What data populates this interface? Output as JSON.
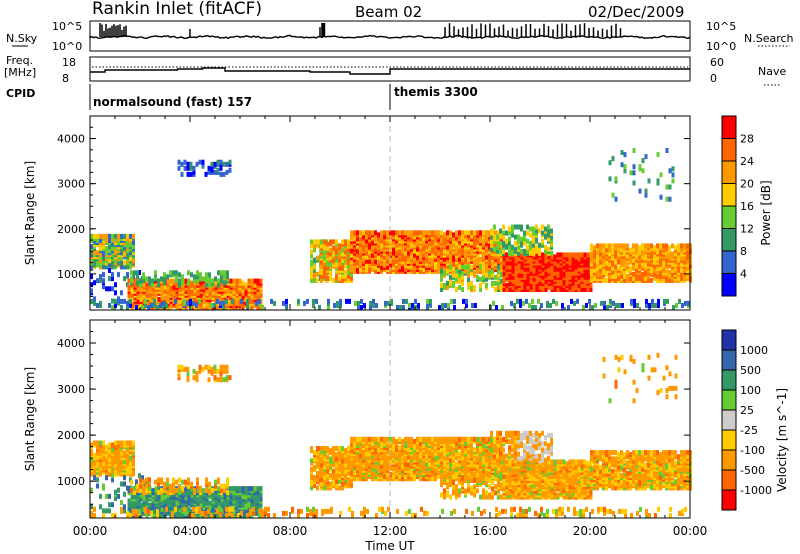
{
  "header": {
    "station": "Rankin Inlet (fitACF)",
    "beam": "Beam 02",
    "date": "02/Dec/2009"
  },
  "summary_panels": {
    "nsky_label": "N.Sky",
    "nsky_ticks": [
      "10^5",
      "10^0"
    ],
    "nsearch_label": "N.Search",
    "nsearch_ticks": [
      "10^5",
      "10^0"
    ],
    "freq_label_1": "Freq.",
    "freq_label_2": "[MHz]",
    "freq_ticks": [
      "18",
      "8"
    ],
    "nave_label": "Nave",
    "nave_ticks": [
      "60",
      "0"
    ],
    "cpid_label": "CPID",
    "cpid_modes": [
      {
        "name": "normalsound (fast) 157",
        "start": "00:00",
        "end": "12:00"
      },
      {
        "name": "themis 3300",
        "start": "12:00",
        "end": "24:00"
      }
    ]
  },
  "colors": {
    "power_scale": [
      "#0000ff",
      "#3366cc",
      "#339966",
      "#66cc33",
      "#ffcc00",
      "#ff9900",
      "#ff6600",
      "#ff0000"
    ],
    "velocity_scale": [
      "#ff0000",
      "#ff6600",
      "#ff9900",
      "#ffcc00",
      "#cccccc",
      "#66cc33",
      "#339966",
      "#3366aa",
      "#2233aa"
    ]
  },
  "chart_data": [
    {
      "type": "heatmap",
      "name": "power",
      "ylabel": "Slant Range [km]",
      "yticks": [
        "1000",
        "2000",
        "3000",
        "4000"
      ],
      "ylim": [
        200,
        4500
      ],
      "xlim": [
        "00:00",
        "24:00"
      ],
      "colorbar_label": "Power [dB]",
      "colorbar_ticks": [
        "4",
        "8",
        "12",
        "16",
        "20",
        "24",
        "28"
      ],
      "colorbar_range": [
        0,
        32
      ]
    },
    {
      "type": "heatmap",
      "name": "velocity",
      "ylabel": "Slant Range [km]",
      "yticks": [
        "1000",
        "2000",
        "3000",
        "4000"
      ],
      "ylim": [
        200,
        4500
      ],
      "xlabel": "Time UT",
      "xticks": [
        "00:00",
        "04:00",
        "08:00",
        "12:00",
        "16:00",
        "20:00",
        "00:00"
      ],
      "xlim": [
        "00:00",
        "24:00"
      ],
      "colorbar_label": "Velocity [m s^-1]",
      "colorbar_ticks": [
        "1000",
        "500",
        "100",
        "25",
        "-25",
        "-100",
        "-500",
        "-1000"
      ]
    }
  ],
  "scatter_regions": [
    {
      "t0": 0.0,
      "t1": 1.7,
      "r0": 1100,
      "r1": 1800,
      "p": 0.85,
      "pw": [
        6,
        24
      ]
    },
    {
      "t0": 0.0,
      "t1": 2.3,
      "r0": 300,
      "r1": 1100,
      "p": 0.12,
      "pw": [
        2,
        10
      ]
    },
    {
      "t0": 1.5,
      "t1": 6.8,
      "r0": 200,
      "r1": 800,
      "p": 0.9,
      "pw": [
        18,
        30
      ]
    },
    {
      "t0": 1.6,
      "t1": 5.5,
      "r0": 700,
      "r1": 1000,
      "p": 0.4,
      "pw": [
        8,
        16
      ]
    },
    {
      "t0": 3.5,
      "t1": 5.6,
      "r0": 3150,
      "r1": 3450,
      "p": 0.35,
      "pw": [
        2,
        10
      ]
    },
    {
      "t0": 8.8,
      "t1": 9.4,
      "r0": 800,
      "r1": 1700,
      "p": 0.6,
      "pw": [
        10,
        22
      ]
    },
    {
      "t0": 9.2,
      "t1": 10.5,
      "r0": 800,
      "r1": 1700,
      "p": 0.75,
      "pw": [
        14,
        28
      ]
    },
    {
      "t0": 10.4,
      "t1": 16.5,
      "r0": 1000,
      "r1": 1900,
      "p": 0.92,
      "pw": [
        18,
        30
      ]
    },
    {
      "t0": 14.0,
      "t1": 16.5,
      "r0": 600,
      "r1": 1100,
      "p": 0.45,
      "pw": [
        10,
        22
      ]
    },
    {
      "t0": 16.5,
      "t1": 20.0,
      "r0": 600,
      "r1": 1400,
      "p": 0.95,
      "pw": [
        24,
        32
      ]
    },
    {
      "t0": 16.0,
      "t1": 18.5,
      "r0": 1400,
      "r1": 2000,
      "p": 0.5,
      "pw": [
        8,
        20
      ]
    },
    {
      "t0": 20.0,
      "t1": 24.0,
      "r0": 800,
      "r1": 1600,
      "p": 0.88,
      "pw": [
        16,
        28
      ]
    },
    {
      "t0": 20.5,
      "t1": 23.5,
      "r0": 2600,
      "r1": 3700,
      "p": 0.06,
      "pw": [
        4,
        14
      ]
    },
    {
      "t0": 0.0,
      "t1": 24.0,
      "r0": 200,
      "r1": 350,
      "p": 0.25,
      "pw": [
        2,
        14
      ]
    }
  ]
}
